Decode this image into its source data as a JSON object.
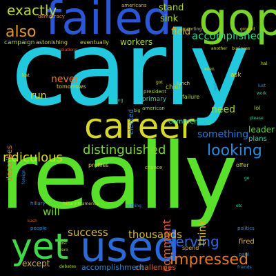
{
  "background_color": "#000000",
  "words": [
    {
      "text": "carly",
      "color": "#22c8dd",
      "orientation": "horizontal"
    },
    {
      "text": "really",
      "color": "#58e02a",
      "orientation": "horizontal"
    },
    {
      "text": "failed",
      "color": "#2a56d8",
      "orientation": "horizontal"
    },
    {
      "text": "gop",
      "color": "#78d428",
      "orientation": "horizontal"
    },
    {
      "text": "career",
      "color": "#d8d82a",
      "orientation": "horizontal"
    },
    {
      "text": "used",
      "color": "#2a6ad8",
      "orientation": "horizontal"
    },
    {
      "text": "yet",
      "color": "#3ed84a",
      "orientation": "horizontal"
    },
    {
      "text": "also",
      "color": "#e09a2a",
      "orientation": "horizontal"
    },
    {
      "text": "exactly",
      "color": "#b8d82a",
      "orientation": "horizontal"
    },
    {
      "text": "distinguished",
      "color": "#7ad82a",
      "orientation": "horizontal"
    },
    {
      "text": "ridiculous",
      "color": "#d8d82a",
      "orientation": "horizontal"
    },
    {
      "text": "looking",
      "color": "#2a8ad8",
      "orientation": "horizontal"
    },
    {
      "text": "impressed",
      "color": "#e07a2a",
      "orientation": "horizontal"
    },
    {
      "text": "serving",
      "color": "#2a6ad8",
      "orientation": "horizontal"
    },
    {
      "text": "accomplished",
      "color": "#2ad88a",
      "orientation": "horizontal"
    },
    {
      "text": "stand",
      "color": "#a8d82a",
      "orientation": "horizontal"
    },
    {
      "text": "sink",
      "color": "#a8d82a",
      "orientation": "horizontal"
    },
    {
      "text": "field",
      "color": "#d8b82a",
      "orientation": "horizontal"
    },
    {
      "text": "thousands",
      "color": "#d8b82a",
      "orientation": "horizontal"
    },
    {
      "text": "success",
      "color": "#d8b82a",
      "orientation": "horizontal"
    },
    {
      "text": "will",
      "color": "#78d428",
      "orientation": "horizontal"
    },
    {
      "text": "run",
      "color": "#d8d82a",
      "orientation": "horizontal"
    },
    {
      "text": "never",
      "color": "#e07a2a",
      "orientation": "horizontal"
    },
    {
      "text": "need",
      "color": "#a8d82a",
      "orientation": "horizontal"
    },
    {
      "text": "something",
      "color": "#2a7ad8",
      "orientation": "horizontal"
    },
    {
      "text": "leader",
      "color": "#58d82a",
      "orientation": "horizontal"
    },
    {
      "text": "plans",
      "color": "#2ad8a8",
      "orientation": "horizontal"
    },
    {
      "text": "except",
      "color": "#d8b82a",
      "orientation": "horizontal"
    },
    {
      "text": "accomplishment",
      "color": "#2a8ad8",
      "orientation": "horizontal"
    },
    {
      "text": "challenges",
      "color": "#e05a2a",
      "orientation": "horizontal"
    },
    {
      "text": "workers",
      "color": "#a8d82a",
      "orientation": "horizontal"
    },
    {
      "text": "campaign",
      "color": "#a8d82a",
      "orientation": "horizontal"
    },
    {
      "text": "astonishing",
      "color": "#d8d82a",
      "orientation": "horizontal"
    },
    {
      "text": "eventually",
      "color": "#d8d82a",
      "orientation": "horizontal"
    },
    {
      "text": "americans",
      "color": "#d8b82a",
      "orientation": "horizontal"
    },
    {
      "text": "democracy",
      "color": "#e07a2a",
      "orientation": "horizontal"
    },
    {
      "text": "chief",
      "color": "#a8d82a",
      "orientation": "horizontal"
    },
    {
      "text": "commenting",
      "color": "#2ad8a8",
      "orientation": "horizontal"
    },
    {
      "text": "tomorrows",
      "color": "#d8d82a",
      "orientation": "horizontal"
    },
    {
      "text": "lol",
      "color": "#a8d82a",
      "orientation": "horizontal"
    },
    {
      "text": "failure",
      "color": "#a8d82a",
      "orientation": "horizontal"
    },
    {
      "text": "lunch",
      "color": "#d8d82a",
      "orientation": "horizontal"
    },
    {
      "text": "president",
      "color": "#a8d82a",
      "orientation": "horizontal"
    },
    {
      "text": "primary",
      "color": "#2ad8a8",
      "orientation": "horizontal"
    },
    {
      "text": "american",
      "color": "#a8d82a",
      "orientation": "horizontal"
    },
    {
      "text": "ask",
      "color": "#d8d82a",
      "orientation": "horizontal"
    },
    {
      "text": "profiles",
      "color": "#d8d82a",
      "orientation": "horizontal"
    },
    {
      "text": "chance",
      "color": "#d8d82a",
      "orientation": "horizontal"
    },
    {
      "text": "offer",
      "color": "#d8d82a",
      "orientation": "horizontal"
    },
    {
      "text": "spend",
      "color": "#d8b82a",
      "orientation": "horizontal"
    },
    {
      "text": "fired",
      "color": "#d8b82a",
      "orientation": "horizontal"
    },
    {
      "text": "nothing",
      "color": "#2a8ad8",
      "orientation": "horizontal"
    },
    {
      "text": "hillaryforamerica",
      "color": "#d8d82a",
      "orientation": "horizontal"
    },
    {
      "text": "debates",
      "color": "#a8d82a",
      "orientation": "horizontal"
    },
    {
      "text": "hillary",
      "color": "#2a8ad8",
      "orientation": "horizontal"
    },
    {
      "text": "people",
      "color": "#2a8ad8",
      "orientation": "horizontal"
    },
    {
      "text": "politics",
      "color": "#2a8ad8",
      "orientation": "horizontal"
    },
    {
      "text": "paul",
      "color": "#2a8ad8",
      "orientation": "horizontal"
    },
    {
      "text": "business",
      "color": "#d8d82a",
      "orientation": "horizontal"
    },
    {
      "text": "supporting",
      "color": "#d8d82a",
      "orientation": "horizontal"
    },
    {
      "text": "ground",
      "color": "#d8d82a",
      "orientation": "horizontal"
    },
    {
      "text": "another",
      "color": "#d8d82a",
      "orientation": "horizontal"
    },
    {
      "text": "relations",
      "color": "#e05a2a",
      "orientation": "horizontal"
    },
    {
      "text": "wrong",
      "color": "#2ad8a8",
      "orientation": "horizontal"
    },
    {
      "text": "please",
      "color": "#2ad8a8",
      "orientation": "horizontal"
    },
    {
      "text": "work",
      "color": "#2ad8a8",
      "orientation": "horizontal"
    },
    {
      "text": "hal",
      "color": "#d8d82a",
      "orientation": "horizontal"
    },
    {
      "text": "elected",
      "color": "#2a8ad8",
      "orientation": "vertical"
    },
    {
      "text": "describes",
      "color": "#e07a2a",
      "orientation": "vertical"
    },
    {
      "text": "comment",
      "color": "#e05a2a",
      "orientation": "vertical"
    },
    {
      "text": "think",
      "color": "#d8b82a",
      "orientation": "vertical"
    },
    {
      "text": "foreign",
      "color": "#2a8ad8",
      "orientation": "vertical"
    },
    {
      "text": "rest",
      "color": "#2a8ad8",
      "orientation": "vertical"
    },
    {
      "text": "lust",
      "color": "#2a8ad8",
      "orientation": "horizontal"
    },
    {
      "text": "even",
      "color": "#d8d82a",
      "orientation": "horizontal"
    },
    {
      "text": "big",
      "color": "#a8d82a",
      "orientation": "horizontal"
    },
    {
      "text": "got",
      "color": "#d8d82a",
      "orientation": "horizontal"
    },
    {
      "text": "lost",
      "color": "#d8d82a",
      "orientation": "horizontal"
    },
    {
      "text": "go",
      "color": "#2ad8a8",
      "orientation": "horizontal"
    },
    {
      "text": "etc",
      "color": "#2ad8a8",
      "orientation": "horizontal"
    },
    {
      "text": "zero",
      "color": "#a8d82a",
      "orientation": "horizontal"
    },
    {
      "text": "post",
      "color": "#a8d82a",
      "orientation": "horizontal"
    },
    {
      "text": "kash",
      "color": "#e05a2a",
      "orientation": "horizontal"
    },
    {
      "text": "friends",
      "color": "#2a8ad8",
      "orientation": "horizontal"
    }
  ]
}
